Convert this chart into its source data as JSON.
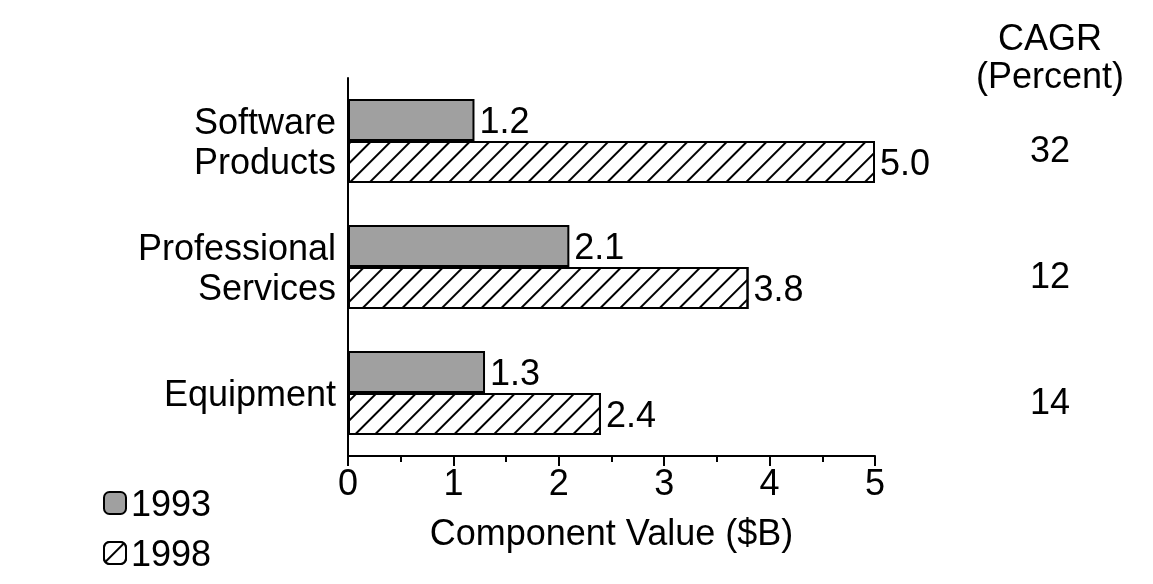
{
  "chart_data": {
    "type": "bar",
    "orientation": "horizontal",
    "xlabel": "Component Value ($B)",
    "categories": [
      "Software\nProducts",
      "Professional\nServices",
      "Equipment"
    ],
    "series": [
      {
        "name": "1993",
        "color": "#a0a0a0",
        "values": [
          1.2,
          2.1,
          1.3
        ],
        "value_labels": [
          "1.2",
          "2.1",
          "1.3"
        ]
      },
      {
        "name": "1998",
        "color": "#ffffff",
        "values": [
          5.0,
          3.8,
          2.4
        ],
        "value_labels": [
          "5.0",
          "3.8",
          "2.4"
        ]
      }
    ],
    "xlim": [
      0,
      5
    ],
    "xticks": [
      0,
      1,
      2,
      3,
      4,
      5
    ],
    "grid": false,
    "legend": "bottom left",
    "annotations": [
      "CAGR\n(Percent)",
      "32",
      "12",
      "14"
    ]
  }
}
